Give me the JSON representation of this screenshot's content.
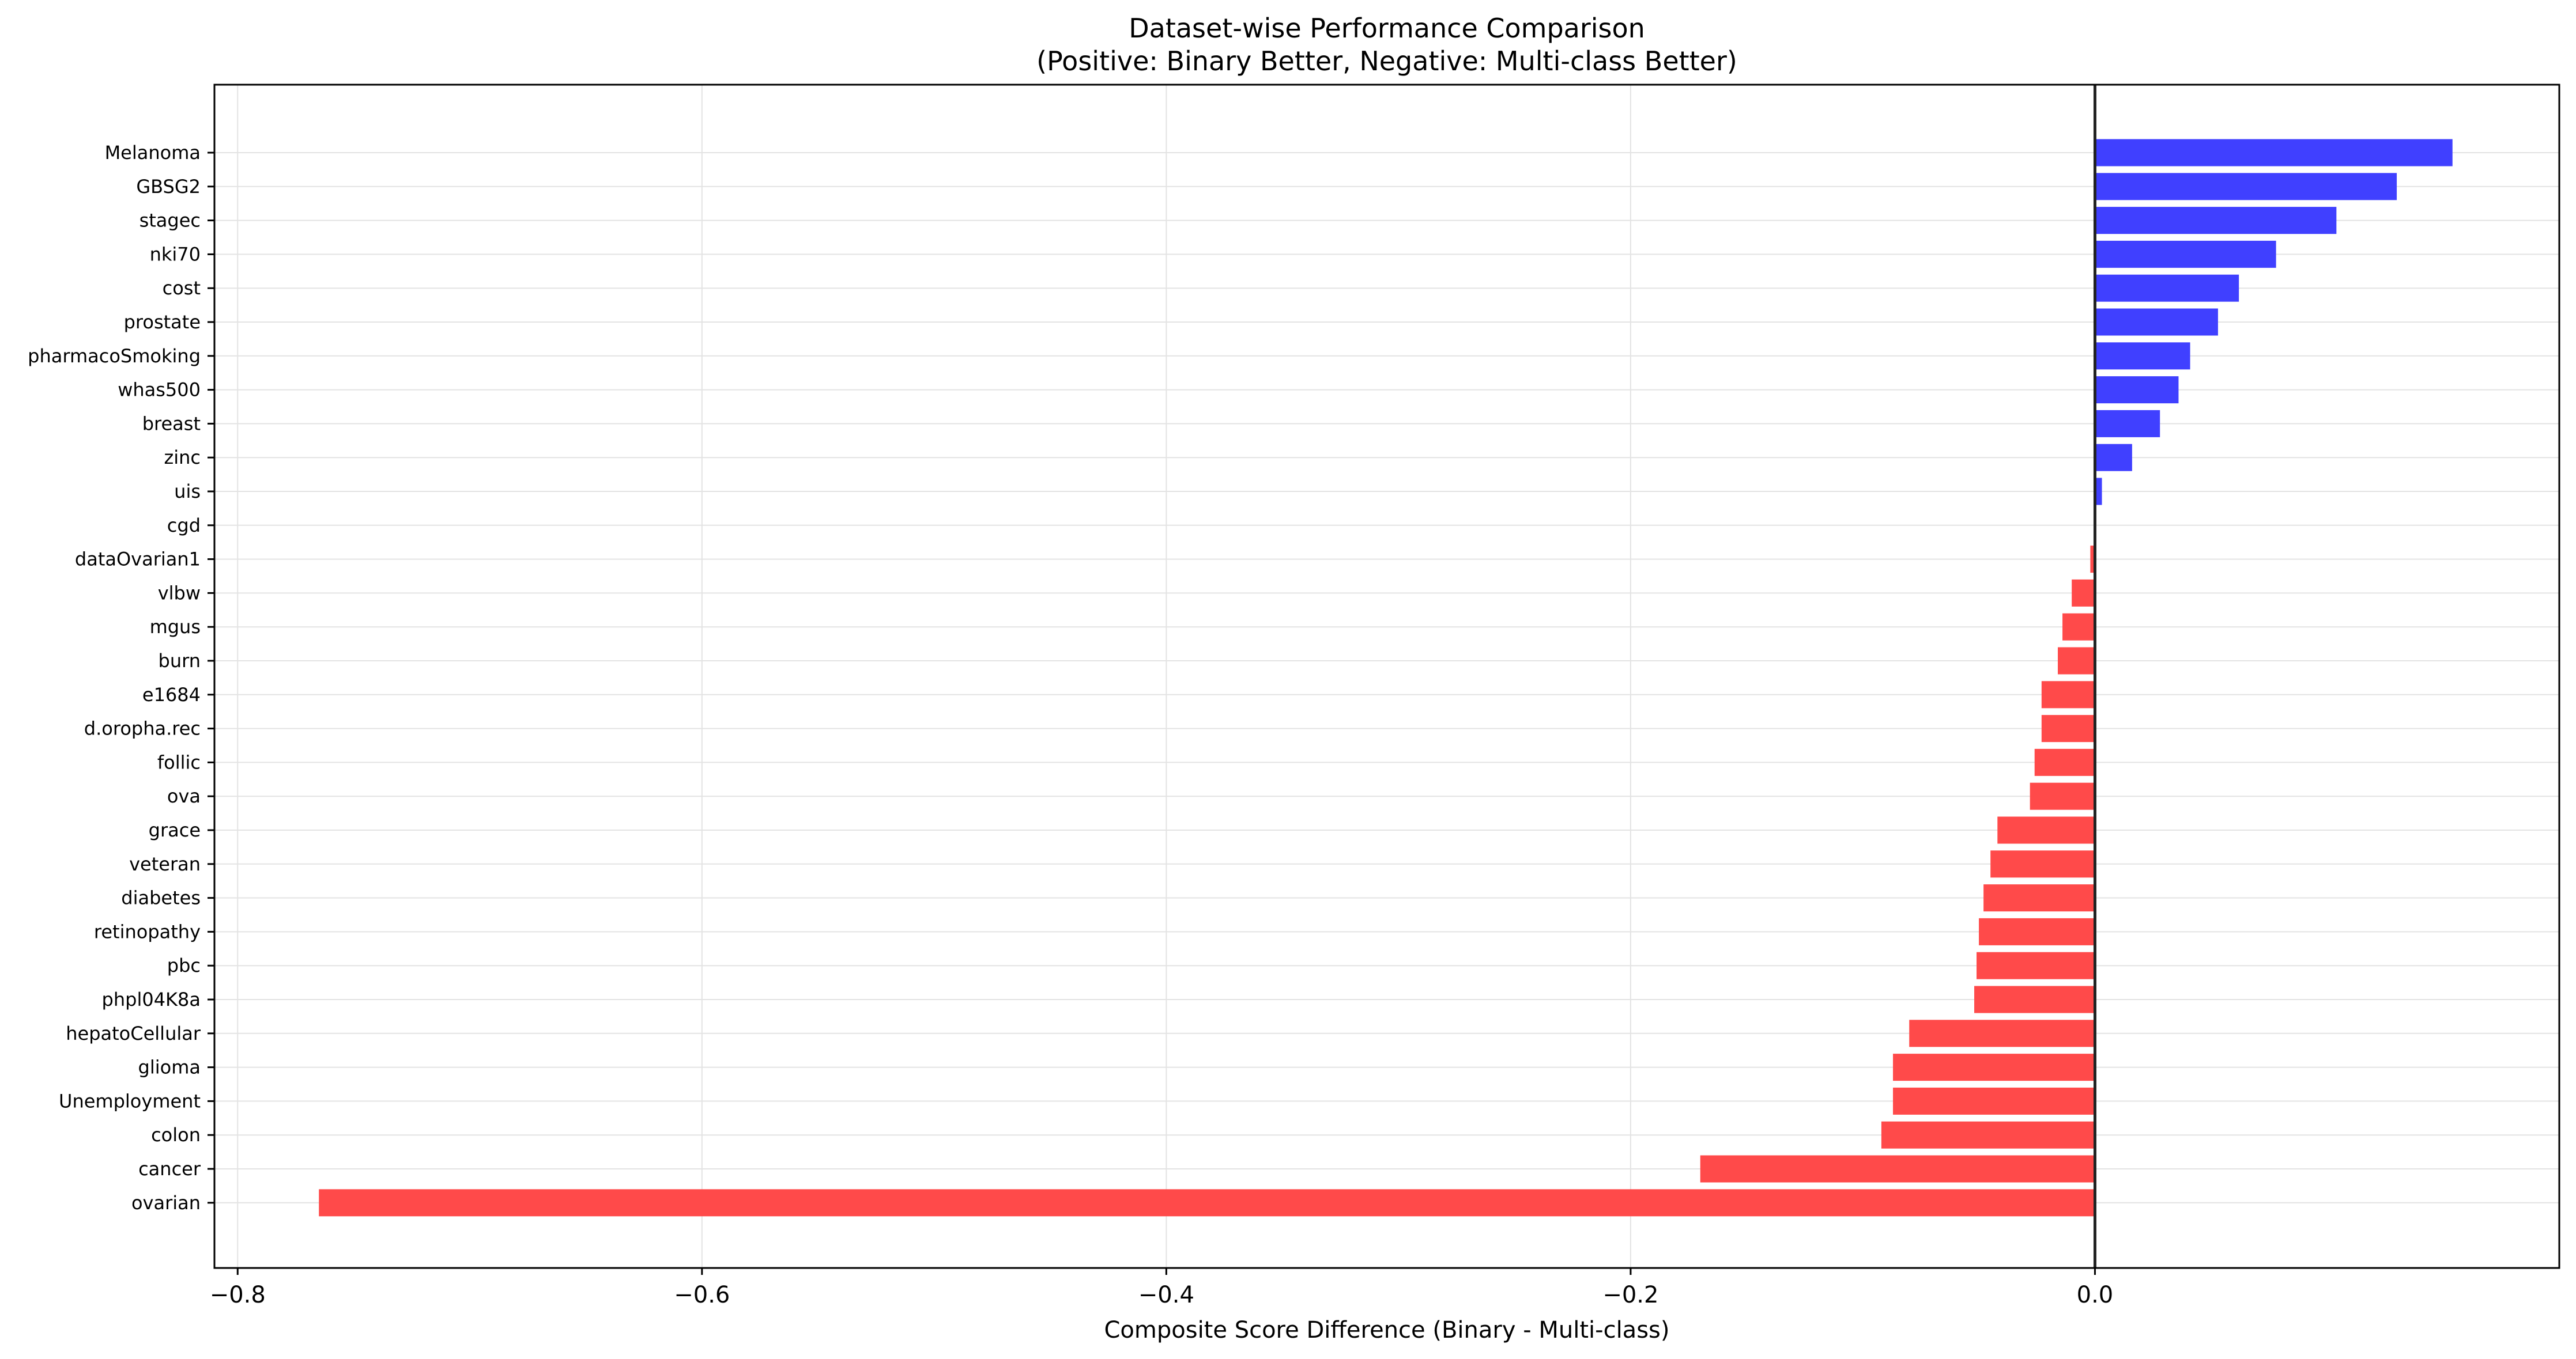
{
  "chart_data": {
    "type": "bar",
    "orientation": "horizontal",
    "title": "Dataset-wise Performance Comparison",
    "subtitle": "(Positive: Binary Better, Negative: Multi-class Better)",
    "xlabel": "Composite Score Difference (Binary - Multi-class)",
    "ylabel": "",
    "xlim": [
      -0.81,
      0.2
    ],
    "xticks": [
      -0.8,
      -0.6,
      -0.4,
      -0.2,
      0.0
    ],
    "xtick_labels": [
      "−0.8",
      "−0.6",
      "−0.4",
      "−0.2",
      "0.0"
    ],
    "grid": true,
    "zero_line": true,
    "colors": {
      "positive": "#4040ff",
      "negative": "#ff4a4a",
      "grid": "#e3e3e3",
      "zero_line": "#222222"
    },
    "categories": [
      "Melanoma",
      "GBSG2",
      "stagec",
      "nki70",
      "cost",
      "prostate",
      "pharmacoSmoking",
      "whas500",
      "breast",
      "zinc",
      "uis",
      "cgd",
      "dataOvarian1",
      "vlbw",
      "mgus",
      "burn",
      "e1684",
      "d.oropha.rec",
      "follic",
      "ova",
      "grace",
      "veteran",
      "diabetes",
      "retinopathy",
      "pbc",
      "phpl04K8a",
      "hepatoCellular",
      "glioma",
      "Unemployment",
      "colon",
      "cancer",
      "ovarian"
    ],
    "values": [
      0.154,
      0.13,
      0.104,
      0.078,
      0.062,
      0.053,
      0.041,
      0.036,
      0.028,
      0.016,
      0.003,
      0.0,
      -0.002,
      -0.01,
      -0.014,
      -0.016,
      -0.023,
      -0.023,
      -0.026,
      -0.028,
      -0.042,
      -0.045,
      -0.048,
      -0.05,
      -0.051,
      -0.052,
      -0.08,
      -0.087,
      -0.087,
      -0.092,
      -0.17,
      -0.765
    ]
  }
}
